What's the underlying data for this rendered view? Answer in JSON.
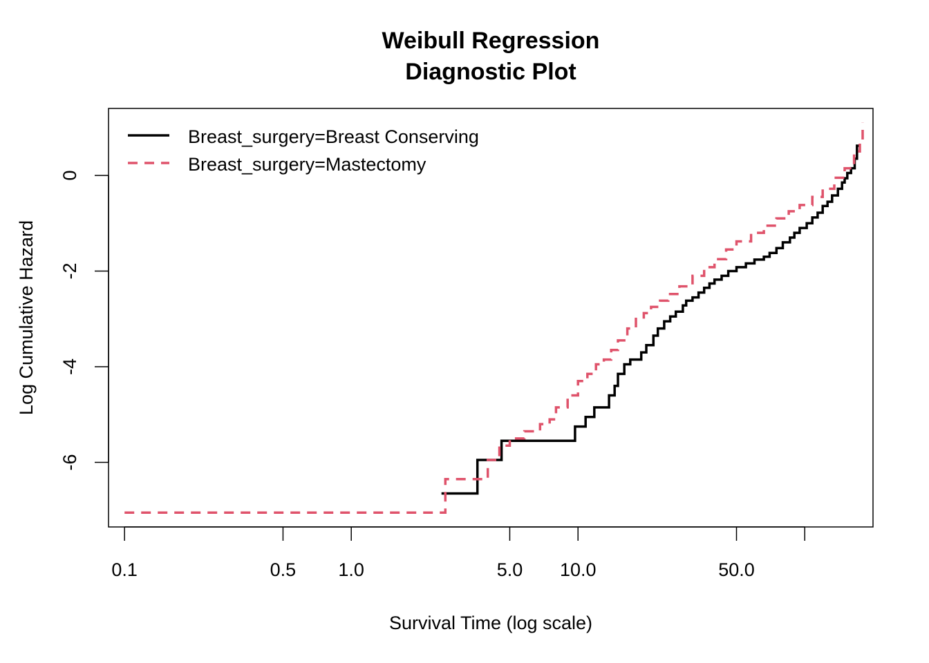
{
  "chart_data": {
    "type": "line",
    "title_lines": [
      "Weibull Regression",
      "Diagnostic Plot"
    ],
    "xlabel": "Survival Time (log scale)",
    "ylabel": "Log Cumulative Hazard",
    "x_scale": "log",
    "xlim": [
      0.085,
      200
    ],
    "ylim": [
      -7.35,
      1.4
    ],
    "x_ticks": [
      0.1,
      0.5,
      1.0,
      5.0,
      10.0,
      50.0,
      100.0
    ],
    "x_tick_labels": [
      "0.1",
      "0.5",
      "1.0",
      "5.0",
      "10.0",
      "50.0",
      ""
    ],
    "y_ticks": [
      -6,
      -4,
      -2,
      0
    ],
    "y_tick_labels": [
      "-6",
      "-4",
      "-2",
      "0"
    ],
    "grid": false,
    "legend_position": "top-left",
    "series": [
      {
        "name": "Breast_surgery=Breast Conserving",
        "color": "#000000",
        "dash": "solid",
        "x": [
          2.5,
          3.6,
          4.6,
          9.7,
          10.8,
          11.8,
          13.7,
          14.5,
          15.0,
          16.0,
          17.0,
          19.0,
          20.0,
          21.5,
          22.5,
          24.0,
          25.5,
          27.0,
          29.0,
          30.0,
          32.0,
          34.0,
          36.0,
          38.0,
          40.0,
          43.0,
          46.0,
          50.0,
          55.0,
          60.0,
          66.0,
          70.0,
          75.0,
          80.0,
          86.0,
          90.0,
          95.0,
          102.0,
          108.0,
          114.0,
          120.0,
          126.0,
          132.0,
          140.0,
          146.0,
          150.0,
          154.0,
          160.0,
          166.0,
          170.0,
          175.0
        ],
        "y": [
          -6.65,
          -5.95,
          -5.55,
          -5.25,
          -5.05,
          -4.85,
          -4.6,
          -4.4,
          -4.15,
          -3.95,
          -3.85,
          -3.7,
          -3.55,
          -3.35,
          -3.2,
          -3.05,
          -2.95,
          -2.85,
          -2.72,
          -2.62,
          -2.55,
          -2.45,
          -2.35,
          -2.26,
          -2.18,
          -2.1,
          -2.0,
          -1.92,
          -1.84,
          -1.76,
          -1.7,
          -1.62,
          -1.52,
          -1.4,
          -1.3,
          -1.2,
          -1.1,
          -1.0,
          -0.88,
          -0.78,
          -0.64,
          -0.55,
          -0.42,
          -0.28,
          -0.15,
          -0.06,
          0.05,
          0.15,
          0.35,
          0.62,
          0.62
        ]
      },
      {
        "name": "Breast_surgery=Mastectomy",
        "color": "#DF536B",
        "dash": "dashed",
        "x": [
          0.1,
          2.6,
          4.0,
          4.5,
          5.0,
          5.8,
          6.8,
          7.5,
          8.0,
          9.0,
          10.0,
          11.0,
          12.0,
          13.0,
          14.0,
          15.0,
          16.5,
          18.0,
          19.5,
          21.0,
          23.0,
          25.0,
          28.0,
          32.0,
          36.0,
          40.0,
          45.0,
          50.0,
          58.0,
          66.0,
          75.0,
          85.0,
          95.0,
          108.0,
          120.0,
          135.0,
          150.0,
          165.0,
          175.0,
          180.0
        ],
        "y": [
          -7.05,
          -6.35,
          -5.95,
          -5.65,
          -5.5,
          -5.35,
          -5.2,
          -5.1,
          -4.85,
          -4.6,
          -4.3,
          -4.15,
          -3.95,
          -3.85,
          -3.65,
          -3.45,
          -3.2,
          -3.0,
          -2.88,
          -2.75,
          -2.62,
          -2.48,
          -2.32,
          -2.1,
          -1.92,
          -1.75,
          -1.55,
          -1.38,
          -1.2,
          -1.05,
          -0.9,
          -0.75,
          -0.62,
          -0.45,
          -0.28,
          -0.05,
          0.15,
          0.5,
          0.7,
          1.1
        ]
      }
    ]
  }
}
